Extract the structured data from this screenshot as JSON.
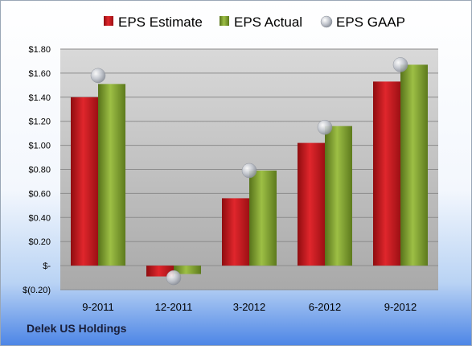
{
  "footer": {
    "company": "Delek US Holdings"
  },
  "colors": {
    "estimate": "#c8141b",
    "actual": "#7fa02c",
    "gaap": "#b5b9c2",
    "plot_background": "#c7c7c7"
  },
  "chart_data": {
    "type": "bar",
    "categories": [
      "9-2011",
      "12-2011",
      "3-2012",
      "6-2012",
      "9-2012"
    ],
    "series": [
      {
        "name": "EPS Estimate",
        "type": "bar",
        "values": [
          1.4,
          -0.09,
          0.56,
          1.02,
          1.53
        ]
      },
      {
        "name": "EPS Actual",
        "type": "bar",
        "values": [
          1.51,
          -0.07,
          0.79,
          1.16,
          1.67
        ]
      },
      {
        "name": "EPS GAAP",
        "type": "scatter",
        "values": [
          1.58,
          -0.1,
          0.79,
          1.15,
          1.67
        ]
      }
    ],
    "ylim": [
      -0.2,
      1.8
    ],
    "yticks": [
      {
        "value": 1.8,
        "label": "$1.80"
      },
      {
        "value": 1.6,
        "label": "$1.60"
      },
      {
        "value": 1.4,
        "label": "$1.40"
      },
      {
        "value": 1.2,
        "label": "$1.20"
      },
      {
        "value": 1.0,
        "label": "$1.00"
      },
      {
        "value": 0.8,
        "label": "$0.80"
      },
      {
        "value": 0.6,
        "label": "$0.60"
      },
      {
        "value": 0.4,
        "label": "$0.40"
      },
      {
        "value": 0.2,
        "label": "$0.20"
      },
      {
        "value": 0.0,
        "label": "$-"
      },
      {
        "value": -0.2,
        "label": "$(0.20)"
      }
    ],
    "grid": true,
    "legend_position": "top"
  }
}
